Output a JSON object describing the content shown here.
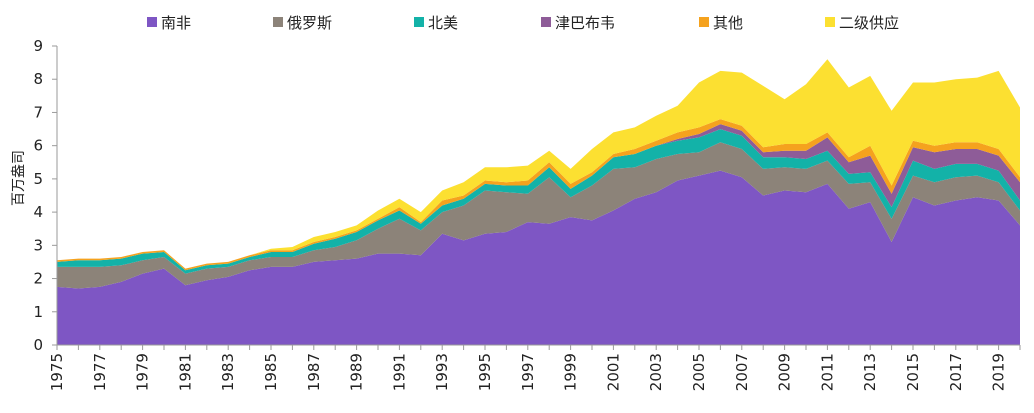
{
  "colors": {
    "south_africa": "#7E56C4",
    "russia": "#8C8379",
    "north_america": "#13B2A8",
    "zimbabwe": "#8E5C98",
    "other": "#F5A21E",
    "secondary": "#FCE031"
  },
  "chart_data": {
    "type": "area",
    "stacked": true,
    "title": "",
    "ylabel": "百万盎司",
    "xlabel": "",
    "ylim": [
      0,
      9
    ],
    "yticks": [
      0,
      1,
      2,
      3,
      4,
      5,
      6,
      7,
      8,
      9
    ],
    "grid": false,
    "legend_position": "top",
    "x": [
      1975,
      1976,
      1977,
      1978,
      1979,
      1980,
      1981,
      1982,
      1983,
      1984,
      1985,
      1986,
      1987,
      1988,
      1989,
      1990,
      1991,
      1992,
      1993,
      1994,
      1995,
      1996,
      1997,
      1998,
      1999,
      2000,
      2001,
      2002,
      2003,
      2004,
      2005,
      2006,
      2007,
      2008,
      2009,
      2010,
      2011,
      2012,
      2013,
      2014,
      2015,
      2016,
      2017,
      2018,
      2019,
      2020
    ],
    "x_tick_labels": [
      "1975",
      "1977",
      "1979",
      "1981",
      "1983",
      "1985",
      "1987",
      "1989",
      "1991",
      "1993",
      "1995",
      "1997",
      "1999",
      "2001",
      "2003",
      "2005",
      "2007",
      "2009",
      "2011",
      "2013",
      "2015",
      "2017",
      "2019"
    ],
    "series": [
      {
        "name": "南非",
        "color_key": "south_africa",
        "values": [
          1.75,
          1.7,
          1.75,
          1.9,
          2.15,
          2.3,
          1.8,
          1.95,
          2.05,
          2.25,
          2.35,
          2.35,
          2.5,
          2.55,
          2.6,
          2.75,
          2.75,
          2.7,
          3.35,
          3.15,
          3.35,
          3.4,
          3.7,
          3.65,
          3.85,
          3.75,
          4.05,
          4.4,
          4.6,
          4.95,
          5.1,
          5.25,
          5.05,
          4.5,
          4.65,
          4.6,
          4.85,
          4.1,
          4.3,
          3.1,
          4.45,
          4.2,
          4.35,
          4.45,
          4.35,
          3.6
        ]
      },
      {
        "name": "俄罗斯",
        "color_key": "russia",
        "values": [
          0.6,
          0.65,
          0.6,
          0.5,
          0.4,
          0.35,
          0.35,
          0.35,
          0.3,
          0.3,
          0.3,
          0.3,
          0.35,
          0.4,
          0.55,
          0.75,
          1.05,
          0.75,
          0.65,
          1.05,
          1.3,
          1.2,
          0.85,
          1.4,
          0.6,
          1.05,
          1.25,
          0.95,
          1.0,
          0.8,
          0.7,
          0.85,
          0.85,
          0.8,
          0.7,
          0.7,
          0.7,
          0.75,
          0.6,
          0.7,
          0.65,
          0.7,
          0.7,
          0.65,
          0.55,
          0.45
        ]
      },
      {
        "name": "北美",
        "color_key": "north_america",
        "values": [
          0.15,
          0.2,
          0.2,
          0.2,
          0.2,
          0.15,
          0.1,
          0.1,
          0.1,
          0.1,
          0.15,
          0.15,
          0.2,
          0.25,
          0.25,
          0.25,
          0.25,
          0.2,
          0.2,
          0.2,
          0.2,
          0.2,
          0.25,
          0.3,
          0.25,
          0.3,
          0.35,
          0.4,
          0.4,
          0.4,
          0.45,
          0.4,
          0.4,
          0.35,
          0.3,
          0.3,
          0.3,
          0.3,
          0.3,
          0.35,
          0.45,
          0.4,
          0.4,
          0.35,
          0.35,
          0.3
        ]
      },
      {
        "name": "津巴布韦",
        "color_key": "zimbabwe",
        "values": [
          0,
          0,
          0,
          0,
          0,
          0,
          0,
          0,
          0,
          0,
          0,
          0,
          0,
          0,
          0,
          0,
          0,
          0,
          0,
          0,
          0,
          0,
          0,
          0,
          0,
          0,
          0,
          0,
          0,
          0.05,
          0.1,
          0.15,
          0.15,
          0.15,
          0.2,
          0.25,
          0.4,
          0.35,
          0.5,
          0.4,
          0.4,
          0.5,
          0.45,
          0.45,
          0.45,
          0.55
        ]
      },
      {
        "name": "其他",
        "color_key": "other",
        "values": [
          0.05,
          0.05,
          0.05,
          0.05,
          0.05,
          0.05,
          0.05,
          0.05,
          0.05,
          0.05,
          0.05,
          0.05,
          0.05,
          0.05,
          0.05,
          0.05,
          0.1,
          0.05,
          0.15,
          0.1,
          0.1,
          0.1,
          0.15,
          0.15,
          0.15,
          0.1,
          0.1,
          0.15,
          0.15,
          0.2,
          0.2,
          0.15,
          0.15,
          0.15,
          0.2,
          0.2,
          0.15,
          0.15,
          0.3,
          0.25,
          0.2,
          0.2,
          0.2,
          0.2,
          0.2,
          0.15
        ]
      },
      {
        "name": "二级供应",
        "color_key": "secondary",
        "values": [
          0,
          0,
          0,
          0,
          0,
          0,
          0,
          0,
          0,
          0,
          0.05,
          0.1,
          0.15,
          0.15,
          0.15,
          0.25,
          0.25,
          0.3,
          0.3,
          0.4,
          0.4,
          0.45,
          0.45,
          0.35,
          0.45,
          0.7,
          0.65,
          0.65,
          0.75,
          0.8,
          1.35,
          1.45,
          1.6,
          1.85,
          1.35,
          1.8,
          2.2,
          2.1,
          2.1,
          2.25,
          1.75,
          1.9,
          1.9,
          1.95,
          2.35,
          2.1
        ]
      }
    ]
  }
}
